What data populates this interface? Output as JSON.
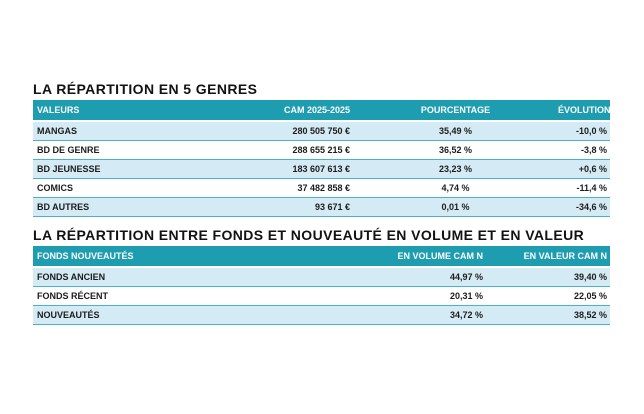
{
  "colors": {
    "page-bg": "#ffffff",
    "header-bg": "#1E9DB0",
    "row-alt-bg": "#D4EAF4",
    "row-bg": "#ffffff",
    "separator": "#4DB3C4",
    "title-text": "#121212",
    "header-text": "#ffffff",
    "cell-text": "#1C1C1C"
  },
  "tables": [
    {
      "title": "LA RÉPARTITION EN 5 GENRES",
      "columns": [
        "VALEURS",
        "CAM 2025-2025",
        "POURCENTAGE",
        "ÉVOLUTION"
      ],
      "rows": [
        [
          "MANGAS",
          "280 505 750 €",
          "35,49 %",
          "-10,0 %"
        ],
        [
          "BD DE GENRE",
          "288 655 215 €",
          "36,52 %",
          "-3,8 %"
        ],
        [
          "BD JEUNESSE",
          "183 607 613 €",
          "23,23 %",
          "+0,6 %"
        ],
        [
          "COMICS",
          "37 482 858 €",
          "4,74 %",
          "-11,4 %"
        ],
        [
          "BD AUTRES",
          "93 671 €",
          "0,01 %",
          "-34,6 %"
        ]
      ]
    },
    {
      "title": "LA RÉPARTITION ENTRE FONDS ET NOUVEAUTÉ EN VOLUME ET EN VALEUR",
      "columns": [
        "FONDS NOUVEAUTÉS",
        "EN VOLUME CAM N",
        "EN VALEUR CAM N"
      ],
      "rows": [
        [
          "FONDS ANCIEN",
          "44,97 %",
          "39,40 %"
        ],
        [
          "FONDS RÉCENT",
          "20,31 %",
          "22,05 %"
        ],
        [
          "NOUVEAUTÉS",
          "34,72 %",
          "38,52 %"
        ]
      ]
    }
  ]
}
